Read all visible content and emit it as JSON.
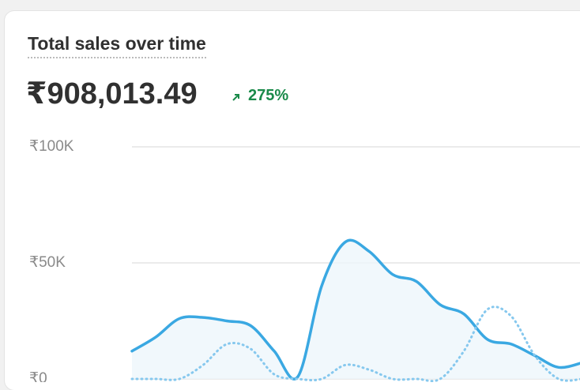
{
  "chart_data": {
    "type": "line",
    "title": "Total sales over time",
    "headline_value": "₹908,013.49",
    "change": "275%",
    "categories": [
      null,
      null,
      null,
      null,
      null,
      null,
      null,
      null,
      null,
      null,
      null,
      null,
      null,
      null,
      null,
      null,
      null,
      null,
      null,
      null
    ],
    "series": [
      {
        "color": "#3aa8e2",
        "style": "solid",
        "values": [
          12000,
          18000,
          26000,
          26500,
          25000,
          23000,
          12000,
          1000,
          40000,
          59000,
          55000,
          45000,
          42000,
          32000,
          28000,
          17000,
          15000,
          10000,
          5000,
          7000
        ]
      },
      {
        "color": "#86c8ee",
        "style": "dotted",
        "values": [
          0,
          0,
          0,
          6000,
          15000,
          13000,
          2000,
          0,
          0,
          6000,
          4000,
          0,
          0,
          0,
          12000,
          30000,
          27000,
          10000,
          0,
          0
        ]
      }
    ],
    "ylim": [
      0,
      100000
    ],
    "yticks": [
      {
        "value": 0,
        "label": "₹0"
      },
      {
        "value": 50000,
        "label": "₹50K"
      },
      {
        "value": 100000,
        "label": "₹100K"
      }
    ],
    "grid": true
  }
}
